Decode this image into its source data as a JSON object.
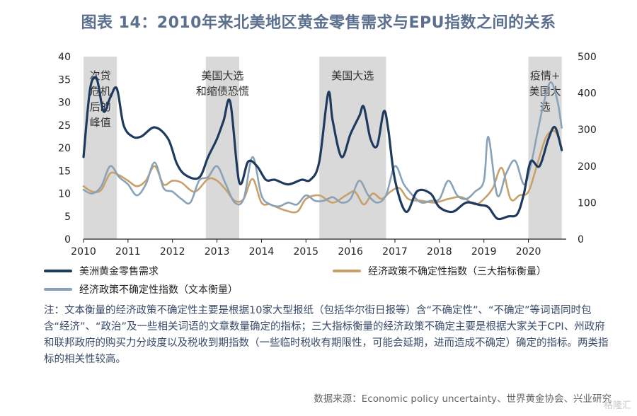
{
  "title": "图表 14：2010年来北美地区黄金零售需求与EPU指数之间的关系",
  "note": "注：文本衡量的经济政策不确定性主要是根据10家大型报纸（包括华尔街日报等）含“不确定性”、“不确定”等词语同时包含“经济”、“政治”及一些相关词语的文章数量确定的指标；三大指标衡量的经济政策不确定主要是根据大家关于CPI、州政府和联邦政府的购买力分歧度以及税收到期指数（一些临时税收有期限性，可能会延期，进而造成不确定）确定的指标。两类指标的相关性较高。",
  "source": "数据来源：Economic policy uncertainty、世界黄金协会、兴业研究",
  "watermark": "格隆汇",
  "colors": {
    "gold": "#1e3a5f",
    "epu3": "#c8a06a",
    "epuText": "#8aa2b8",
    "band": "#d9d9d9"
  },
  "chart_data": {
    "type": "line",
    "x_tick_labels": [
      "2010",
      "2011",
      "2012",
      "2013",
      "2014",
      "2015",
      "2016",
      "2017",
      "2018",
      "2019",
      "2020"
    ],
    "y_left": {
      "ylim": [
        0,
        40
      ],
      "ticks": [
        "0",
        "5",
        "10",
        "15",
        "20",
        "25",
        "30",
        "35",
        "40"
      ]
    },
    "y_right": {
      "ylim": [
        0,
        500
      ],
      "ticks": [
        "0",
        "100",
        "200",
        "300",
        "400",
        "500"
      ]
    },
    "shaded_periods": [
      {
        "start": 2010.0,
        "end": 2010.75,
        "label": [
          "次贷",
          "危机",
          "后的",
          "峰值"
        ]
      },
      {
        "start": 2012.75,
        "end": 2013.5,
        "label": [
          "美国大选",
          "和缩债恐慌"
        ]
      },
      {
        "start": 2015.3,
        "end": 2016.8,
        "label": [
          "美国大选"
        ]
      },
      {
        "start": 2020.0,
        "end": 2020.75,
        "label": [
          "疫情+",
          "美国大",
          "选"
        ]
      }
    ],
    "series": [
      {
        "name": "美洲黄金零售需求",
        "axis": "left",
        "x": [
          2010.0,
          2010.15,
          2010.3,
          2010.45,
          2010.6,
          2010.75,
          2010.9,
          2011.1,
          2011.3,
          2011.6,
          2011.9,
          2012.1,
          2012.3,
          2012.6,
          2012.8,
          2013.0,
          2013.15,
          2013.3,
          2013.5,
          2013.7,
          2013.9,
          2014.1,
          2014.3,
          2014.6,
          2014.9,
          2015.1,
          2015.3,
          2015.5,
          2015.6,
          2015.8,
          2016.0,
          2016.2,
          2016.3,
          2016.45,
          2016.6,
          2016.75,
          2016.85,
          2017.0,
          2017.25,
          2017.5,
          2017.8,
          2018.0,
          2018.3,
          2018.6,
          2018.9,
          2019.1,
          2019.3,
          2019.55,
          2019.75,
          2019.9,
          2020.05,
          2020.25,
          2020.45,
          2020.6,
          2020.75
        ],
        "values": [
          18,
          33,
          35,
          28,
          31,
          33,
          25,
          22.5,
          22.5,
          24.5,
          22,
          16.5,
          14,
          13.5,
          18,
          22,
          26,
          30,
          12.5,
          17,
          16,
          13,
          13,
          12,
          13,
          13,
          17,
          32,
          26,
          18,
          23,
          27,
          29,
          22,
          20.5,
          28,
          24,
          13,
          6,
          10.5,
          10,
          7,
          6,
          8,
          7.5,
          7,
          4.5,
          5,
          5.5,
          10,
          17,
          16,
          22,
          24.5,
          19.5
        ]
      },
      {
        "name": "经济政策不确定性指数（三大指标衡量）",
        "axis": "right",
        "x": [
          2010.0,
          2010.2,
          2010.4,
          2010.6,
          2010.8,
          2011.0,
          2011.2,
          2011.4,
          2011.6,
          2011.8,
          2012.0,
          2012.2,
          2012.5,
          2012.8,
          2013.0,
          2013.2,
          2013.4,
          2013.6,
          2013.8,
          2014.0,
          2014.2,
          2014.5,
          2014.8,
          2015.0,
          2015.3,
          2015.6,
          2015.9,
          2016.1,
          2016.3,
          2016.5,
          2016.7,
          2016.9,
          2017.1,
          2017.3,
          2017.6,
          2017.9,
          2018.2,
          2018.5,
          2018.8,
          2019.0,
          2019.2,
          2019.4,
          2019.6,
          2019.8,
          2020.0,
          2020.2,
          2020.4,
          2020.6,
          2020.75
        ],
        "values": [
          145,
          130,
          135,
          180,
          175,
          160,
          145,
          160,
          200,
          150,
          160,
          155,
          130,
          165,
          160,
          135,
          105,
          110,
          165,
          100,
          95,
          80,
          75,
          110,
          120,
          100,
          120,
          130,
          95,
          125,
          110,
          130,
          140,
          110,
          105,
          100,
          110,
          115,
          95,
          110,
          140,
          195,
          110,
          120,
          130,
          205,
          280,
          295,
          250
        ]
      },
      {
        "name": "经济政策不确定性指数（文本衡量）",
        "axis": "right",
        "x": [
          2010.0,
          2010.2,
          2010.4,
          2010.6,
          2010.8,
          2011.0,
          2011.2,
          2011.4,
          2011.6,
          2011.8,
          2012.0,
          2012.2,
          2012.4,
          2012.6,
          2012.8,
          2013.0,
          2013.2,
          2013.4,
          2013.6,
          2013.8,
          2014.0,
          2014.2,
          2014.4,
          2014.6,
          2014.8,
          2015.0,
          2015.2,
          2015.4,
          2015.6,
          2015.8,
          2016.0,
          2016.2,
          2016.4,
          2016.6,
          2016.8,
          2017.0,
          2017.2,
          2017.4,
          2017.6,
          2017.8,
          2018.0,
          2018.2,
          2018.4,
          2018.6,
          2018.8,
          2019.0,
          2019.1,
          2019.3,
          2019.5,
          2019.7,
          2019.9,
          2020.05,
          2020.2,
          2020.35,
          2020.5,
          2020.65,
          2020.75
        ],
        "values": [
          135,
          125,
          145,
          200,
          170,
          150,
          120,
          150,
          210,
          140,
          130,
          110,
          100,
          160,
          170,
          200,
          150,
          100,
          110,
          225,
          120,
          95,
          90,
          100,
          95,
          120,
          105,
          105,
          115,
          100,
          110,
          160,
          120,
          100,
          120,
          200,
          150,
          120,
          100,
          105,
          110,
          160,
          120,
          110,
          130,
          160,
          280,
          120,
          180,
          215,
          150,
          200,
          290,
          375,
          430,
          380,
          305
        ]
      }
    ]
  }
}
